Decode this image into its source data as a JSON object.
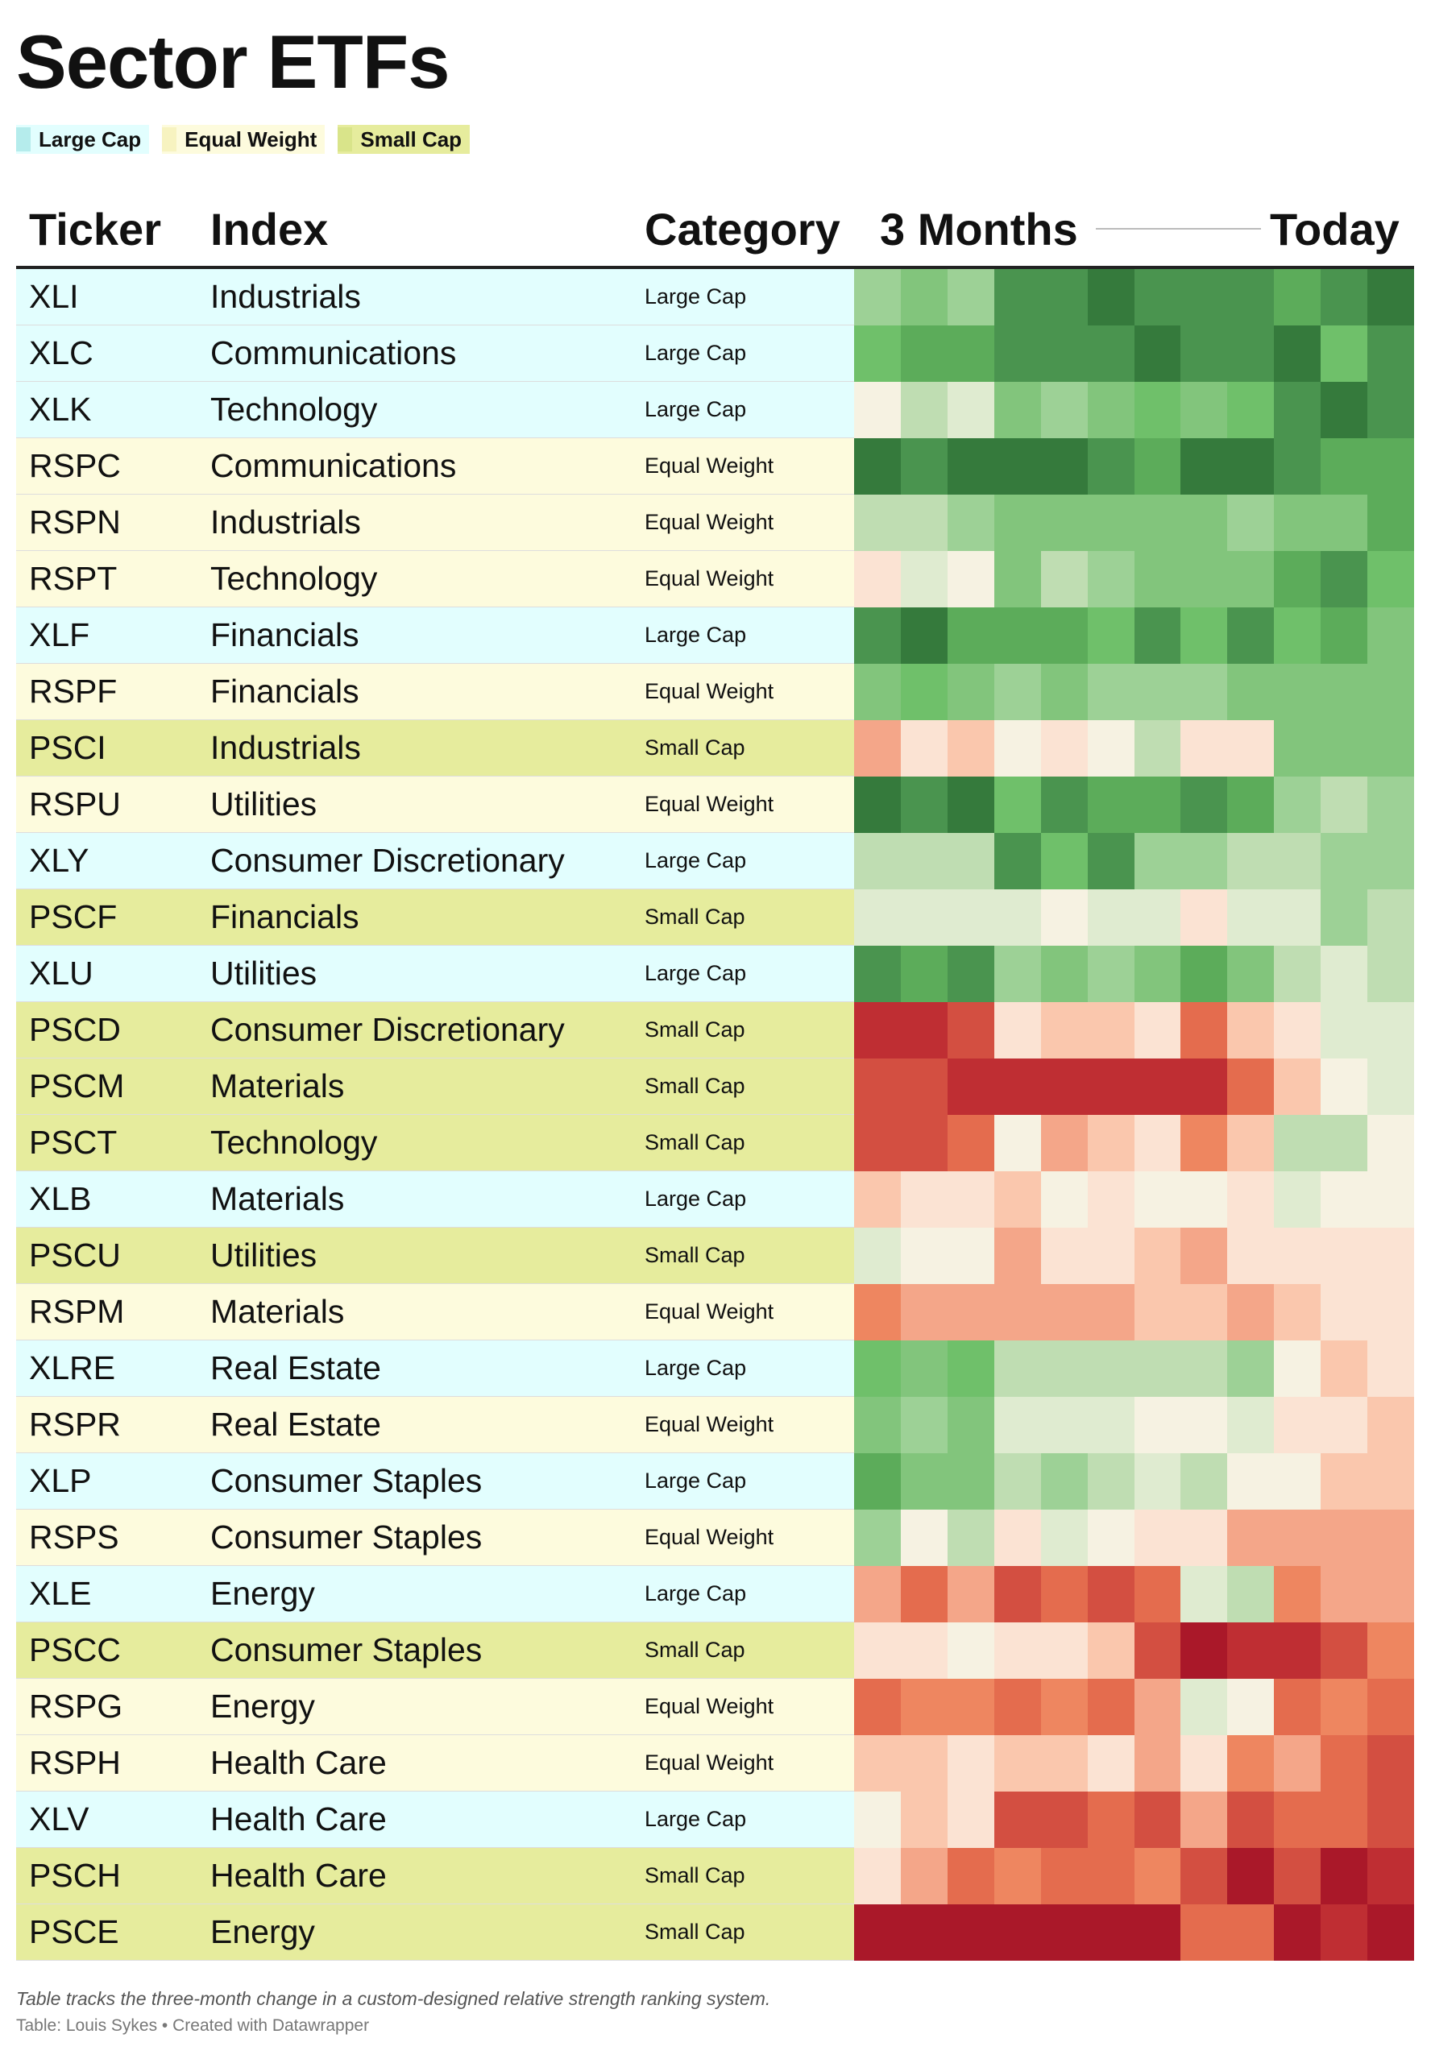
{
  "title": "Sector ETFs",
  "legend": [
    {
      "label": "Large Cap",
      "color": "#b5ecec"
    },
    {
      "label": "Equal Weight",
      "color": "#f7f3c0"
    },
    {
      "label": "Small Cap",
      "color": "#d9e48a"
    }
  ],
  "category_colors": {
    "Large Cap": "#e2fefe",
    "Equal Weight": "#fdfbdd",
    "Small Cap": "#e6ec9d"
  },
  "header": {
    "ticker": "Ticker",
    "index": "Index",
    "category": "Category",
    "start": "3 Months",
    "end": "Today"
  },
  "palette": {
    "G4": "#357a3c",
    "G3": "#4a944f",
    "G2": "#5cac5a",
    "G1": "#6fc06a",
    "L4": "#82c57c",
    "L3": "#9dd196",
    "L2": "#bfddb2",
    "L1": "#dfebd0",
    "N": "#f6f2e2",
    "P1": "#fbe3d3",
    "P2": "#fac7ad",
    "P3": "#f4a689",
    "O1": "#ee8660",
    "O2": "#e46c4e",
    "R1": "#d34f41",
    "R2": "#bf2e33",
    "R3": "#aa1829"
  },
  "chart_data": {
    "type": "heatmap",
    "title": "Sector ETFs",
    "columns": [
      "Ticker",
      "Index",
      "Category",
      "3 Months",
      "Today"
    ],
    "periods": 12,
    "rows": [
      {
        "ticker": "XLI",
        "index": "Industrials",
        "category": "Large Cap",
        "cells": [
          "L3",
          "L4",
          "L3",
          "G3",
          "G3",
          "G4",
          "G3",
          "G3",
          "G3",
          "G2",
          "G3",
          "G4"
        ]
      },
      {
        "ticker": "XLC",
        "index": "Communications",
        "category": "Large Cap",
        "cells": [
          "G1",
          "G2",
          "G2",
          "G3",
          "G3",
          "G3",
          "G4",
          "G3",
          "G3",
          "G4",
          "G1",
          "G3"
        ]
      },
      {
        "ticker": "XLK",
        "index": "Technology",
        "category": "Large Cap",
        "cells": [
          "N",
          "L2",
          "L1",
          "L4",
          "L3",
          "L4",
          "G1",
          "L4",
          "G1",
          "G3",
          "G4",
          "G3"
        ]
      },
      {
        "ticker": "RSPC",
        "index": "Communications",
        "category": "Equal Weight",
        "cells": [
          "G4",
          "G3",
          "G4",
          "G4",
          "G4",
          "G3",
          "G2",
          "G4",
          "G4",
          "G3",
          "G2",
          "G2"
        ]
      },
      {
        "ticker": "RSPN",
        "index": "Industrials",
        "category": "Equal Weight",
        "cells": [
          "L2",
          "L2",
          "L3",
          "L4",
          "L4",
          "L4",
          "L4",
          "L4",
          "L3",
          "L4",
          "L4",
          "G2"
        ]
      },
      {
        "ticker": "RSPT",
        "index": "Technology",
        "category": "Equal Weight",
        "cells": [
          "P1",
          "L1",
          "N",
          "L4",
          "L2",
          "L3",
          "L4",
          "L4",
          "L4",
          "G2",
          "G3",
          "G1"
        ]
      },
      {
        "ticker": "XLF",
        "index": "Financials",
        "category": "Large Cap",
        "cells": [
          "G3",
          "G4",
          "G2",
          "G2",
          "G2",
          "G1",
          "G3",
          "G1",
          "G3",
          "G1",
          "G2",
          "L4"
        ]
      },
      {
        "ticker": "RSPF",
        "index": "Financials",
        "category": "Equal Weight",
        "cells": [
          "L4",
          "G1",
          "L4",
          "L3",
          "L4",
          "L3",
          "L3",
          "L3",
          "L4",
          "L4",
          "L4",
          "L4"
        ]
      },
      {
        "ticker": "PSCI",
        "index": "Industrials",
        "category": "Small Cap",
        "cells": [
          "P3",
          "P1",
          "P2",
          "N",
          "P1",
          "N",
          "L2",
          "P1",
          "P1",
          "L4",
          "L4",
          "L4"
        ]
      },
      {
        "ticker": "RSPU",
        "index": "Utilities",
        "category": "Equal Weight",
        "cells": [
          "G4",
          "G3",
          "G4",
          "G1",
          "G3",
          "G2",
          "G2",
          "G3",
          "G2",
          "L3",
          "L2",
          "L3"
        ]
      },
      {
        "ticker": "XLY",
        "index": "Consumer Discretionary",
        "category": "Large Cap",
        "cells": [
          "L2",
          "L2",
          "L2",
          "G3",
          "G1",
          "G3",
          "L3",
          "L3",
          "L2",
          "L2",
          "L3",
          "L3"
        ]
      },
      {
        "ticker": "PSCF",
        "index": "Financials",
        "category": "Small Cap",
        "cells": [
          "L1",
          "L1",
          "L1",
          "L1",
          "N",
          "L1",
          "L1",
          "P1",
          "L1",
          "L1",
          "L3",
          "L2"
        ]
      },
      {
        "ticker": "XLU",
        "index": "Utilities",
        "category": "Large Cap",
        "cells": [
          "G3",
          "G2",
          "G3",
          "L3",
          "L4",
          "L3",
          "L4",
          "G2",
          "L4",
          "L2",
          "L1",
          "L2"
        ]
      },
      {
        "ticker": "PSCD",
        "index": "Consumer Discretionary",
        "category": "Small Cap",
        "cells": [
          "R2",
          "R2",
          "R1",
          "P1",
          "P2",
          "P2",
          "P1",
          "O2",
          "P2",
          "P1",
          "L1",
          "L1"
        ]
      },
      {
        "ticker": "PSCM",
        "index": "Materials",
        "category": "Small Cap",
        "cells": [
          "R1",
          "R1",
          "R2",
          "R2",
          "R2",
          "R2",
          "R2",
          "R2",
          "O2",
          "P2",
          "N",
          "L1"
        ]
      },
      {
        "ticker": "PSCT",
        "index": "Technology",
        "category": "Small Cap",
        "cells": [
          "R1",
          "R1",
          "O2",
          "N",
          "P3",
          "P2",
          "P1",
          "O1",
          "P2",
          "L2",
          "L2",
          "N"
        ]
      },
      {
        "ticker": "XLB",
        "index": "Materials",
        "category": "Large Cap",
        "cells": [
          "P2",
          "P1",
          "P1",
          "P2",
          "N",
          "P1",
          "N",
          "N",
          "P1",
          "L1",
          "N",
          "N"
        ]
      },
      {
        "ticker": "PSCU",
        "index": "Utilities",
        "category": "Small Cap",
        "cells": [
          "L1",
          "N",
          "N",
          "P3",
          "P1",
          "P1",
          "P2",
          "P3",
          "P1",
          "P1",
          "P1",
          "P1"
        ]
      },
      {
        "ticker": "RSPM",
        "index": "Materials",
        "category": "Equal Weight",
        "cells": [
          "O1",
          "P3",
          "P3",
          "P3",
          "P3",
          "P3",
          "P2",
          "P2",
          "P3",
          "P2",
          "P1",
          "P1"
        ]
      },
      {
        "ticker": "XLRE",
        "index": "Real Estate",
        "category": "Large Cap",
        "cells": [
          "G1",
          "L4",
          "G1",
          "L2",
          "L2",
          "L2",
          "L2",
          "L2",
          "L3",
          "N",
          "P2",
          "P1"
        ]
      },
      {
        "ticker": "RSPR",
        "index": "Real Estate",
        "category": "Equal Weight",
        "cells": [
          "L4",
          "L3",
          "L4",
          "L1",
          "L1",
          "L1",
          "N",
          "N",
          "L1",
          "P1",
          "P1",
          "P2"
        ]
      },
      {
        "ticker": "XLP",
        "index": "Consumer Staples",
        "category": "Large Cap",
        "cells": [
          "G2",
          "L4",
          "L4",
          "L2",
          "L3",
          "L2",
          "L1",
          "L2",
          "N",
          "N",
          "P2",
          "P2"
        ]
      },
      {
        "ticker": "RSPS",
        "index": "Consumer Staples",
        "category": "Equal Weight",
        "cells": [
          "L3",
          "N",
          "L2",
          "P1",
          "L1",
          "N",
          "P1",
          "P1",
          "P3",
          "P3",
          "P3",
          "P3"
        ]
      },
      {
        "ticker": "XLE",
        "index": "Energy",
        "category": "Large Cap",
        "cells": [
          "P3",
          "O2",
          "P3",
          "R1",
          "O2",
          "R1",
          "O2",
          "L1",
          "L2",
          "O1",
          "P3",
          "P3"
        ]
      },
      {
        "ticker": "PSCC",
        "index": "Consumer Staples",
        "category": "Small Cap",
        "cells": [
          "P1",
          "P1",
          "N",
          "P1",
          "P1",
          "P2",
          "R1",
          "R3",
          "R2",
          "R2",
          "R1",
          "O1"
        ]
      },
      {
        "ticker": "RSPG",
        "index": "Energy",
        "category": "Equal Weight",
        "cells": [
          "O2",
          "O1",
          "O1",
          "O2",
          "O1",
          "O2",
          "P3",
          "L1",
          "N",
          "O2",
          "O1",
          "O2"
        ]
      },
      {
        "ticker": "RSPH",
        "index": "Health Care",
        "category": "Equal Weight",
        "cells": [
          "P2",
          "P2",
          "P1",
          "P2",
          "P2",
          "P1",
          "P3",
          "P1",
          "O1",
          "P3",
          "O2",
          "R1"
        ]
      },
      {
        "ticker": "XLV",
        "index": "Health Care",
        "category": "Large Cap",
        "cells": [
          "N",
          "P2",
          "P1",
          "R1",
          "R1",
          "O2",
          "R1",
          "P3",
          "R1",
          "O2",
          "O2",
          "R1"
        ]
      },
      {
        "ticker": "PSCH",
        "index": "Health Care",
        "category": "Small Cap",
        "cells": [
          "P1",
          "P3",
          "O2",
          "O1",
          "O2",
          "O2",
          "O1",
          "R1",
          "R3",
          "R1",
          "R3",
          "R2"
        ]
      },
      {
        "ticker": "PSCE",
        "index": "Energy",
        "category": "Small Cap",
        "cells": [
          "R3",
          "R3",
          "R3",
          "R3",
          "R3",
          "R3",
          "R3",
          "O2",
          "O2",
          "R3",
          "R2",
          "R3"
        ]
      }
    ]
  },
  "footnote": "Table tracks the three-month change in a custom-designed relative strength ranking system.",
  "credit": "Table: Louis Sykes • Created with Datawrapper"
}
